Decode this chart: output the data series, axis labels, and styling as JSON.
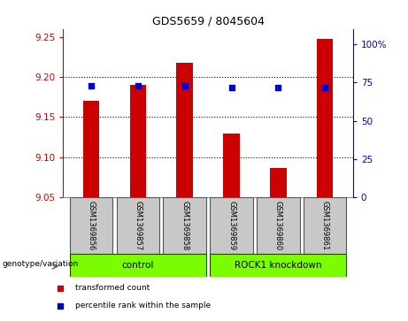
{
  "title": "GDS5659 / 8045604",
  "samples": [
    "GSM1369856",
    "GSM1369857",
    "GSM1369858",
    "GSM1369859",
    "GSM1369860",
    "GSM1369861"
  ],
  "bar_values": [
    9.17,
    9.19,
    9.218,
    9.13,
    9.087,
    9.248
  ],
  "bar_base": 9.05,
  "blue_percentiles": [
    73,
    73,
    73,
    72,
    72,
    72
  ],
  "ylim": [
    9.05,
    9.26
  ],
  "yticks_left": [
    9.05,
    9.1,
    9.15,
    9.2,
    9.25
  ],
  "yticks_right": [
    0,
    25,
    50,
    75,
    100
  ],
  "yright_lim": [
    0,
    110.0
  ],
  "groups": [
    {
      "label": "control",
      "start": 0,
      "end": 2,
      "color": "#7CFC00"
    },
    {
      "label": "ROCK1 knockdown",
      "start": 3,
      "end": 5,
      "color": "#7CFC00"
    }
  ],
  "bar_color": "#CC0000",
  "dot_color": "#0000CC",
  "bg_color": "#C8C8C8",
  "left_axis_color": "#CC0000",
  "right_axis_color": "#0000CC",
  "hgrid_vals": [
    9.1,
    9.15,
    9.2
  ],
  "legend_items": [
    {
      "label": "transformed count",
      "color": "#CC0000"
    },
    {
      "label": "percentile rank within the sample",
      "color": "#0000CC"
    }
  ],
  "genotype_label": "genotype/variation"
}
